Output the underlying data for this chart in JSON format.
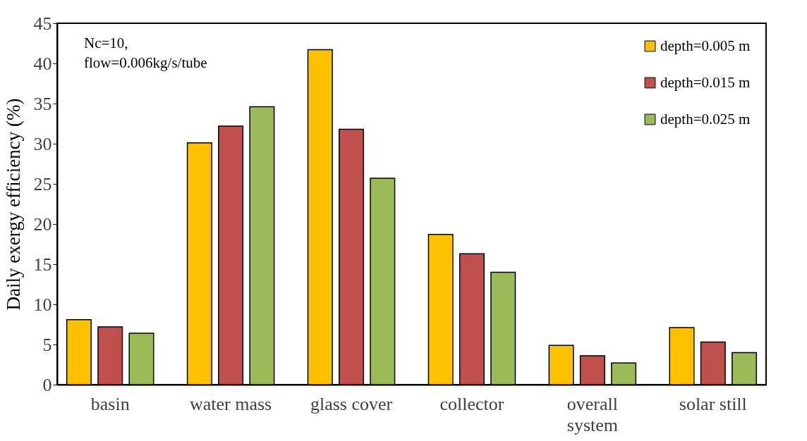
{
  "chart_data": {
    "type": "bar",
    "ylabel": "Daily exergy efficiency (%)",
    "categories": [
      "basin",
      "water mass",
      "glass cover",
      "collector",
      "overall system",
      "solar still"
    ],
    "series": [
      {
        "name": "depth=0.005 m",
        "color": "#ffc000",
        "values": [
          8.1,
          30.1,
          41.7,
          18.7,
          4.9,
          7.1
        ]
      },
      {
        "name": "depth=0.015 m",
        "color": "#c0504d",
        "values": [
          7.2,
          32.2,
          31.8,
          16.3,
          3.6,
          5.3
        ]
      },
      {
        "name": "depth=0.025 m",
        "color": "#9bbb59",
        "values": [
          6.4,
          34.6,
          25.7,
          14.0,
          2.7,
          4.0
        ]
      }
    ],
    "ylim": [
      0,
      45
    ],
    "yticks": [
      0,
      5,
      10,
      15,
      20,
      25,
      30,
      35,
      40,
      45
    ],
    "annotations": [
      "Nc=10,",
      "flow=0.006kg/s/tube"
    ],
    "grid": false,
    "legend": "top right"
  }
}
